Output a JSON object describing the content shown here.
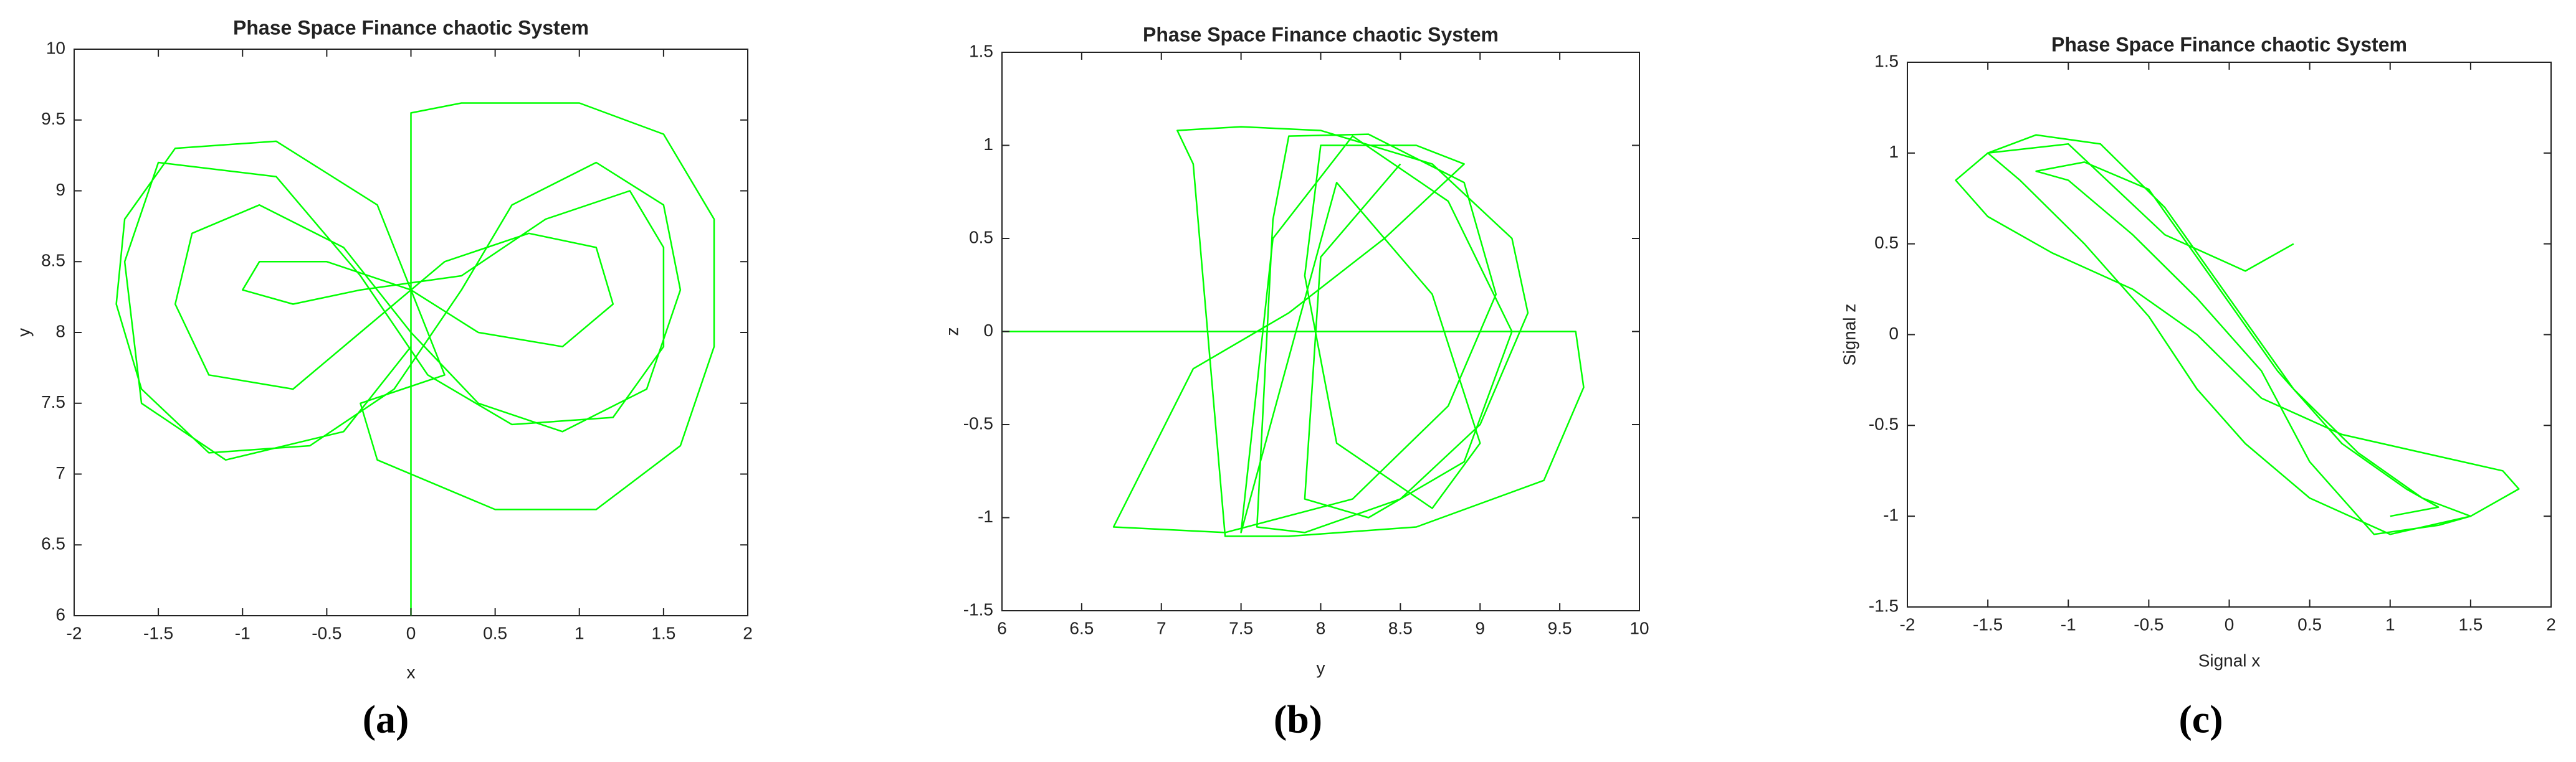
{
  "chart_data": [
    {
      "type": "line",
      "title": "Phase Space Finance chaotic System",
      "xlabel": "x",
      "ylabel": "y",
      "panel_label": "(a)",
      "color": "#00ff00",
      "xlim": [
        -2,
        2
      ],
      "ylim": [
        6,
        10
      ],
      "xticks": [
        -2,
        -1.5,
        -1,
        -0.5,
        0,
        0.5,
        1,
        1.5,
        2
      ],
      "yticks": [
        6,
        6.5,
        7,
        7.5,
        8,
        8.5,
        9,
        9.5,
        10
      ],
      "x": [
        0,
        0,
        0.3,
        1.0,
        1.5,
        1.8,
        1.8,
        1.6,
        1.1,
        0.5,
        -0.2,
        -0.3,
        0.2,
        -0.2,
        -0.8,
        -1.4,
        -1.7,
        -1.75,
        -1.6,
        -1.2,
        -0.6,
        -0.1,
        0.3,
        0.6,
        1.1,
        1.5,
        1.6,
        1.4,
        0.9,
        0.4,
        0,
        -0.4,
        -0.9,
        -1.3,
        -1.4,
        -1.2,
        -0.7,
        -0.3,
        0.2,
        0.7,
        1.1,
        1.2,
        0.9,
        0.4,
        0,
        -0.5,
        -0.9,
        -1.0,
        -0.7,
        -0.3,
        0.3,
        0.8,
        1.3,
        1.5,
        1.5,
        1.2,
        0.6,
        0.1,
        -0.3,
        -0.8,
        -1.5,
        -1.7,
        -1.6,
        -1.1,
        -0.4,
        0
      ],
      "values": [
        6,
        9.55,
        9.62,
        9.62,
        9.4,
        8.8,
        7.9,
        7.2,
        6.75,
        6.75,
        7.1,
        7.5,
        7.7,
        8.9,
        9.35,
        9.3,
        8.8,
        8.2,
        7.6,
        7.15,
        7.2,
        7.6,
        8.3,
        8.9,
        9.2,
        8.9,
        8.3,
        7.6,
        7.3,
        7.5,
        8.0,
        8.6,
        8.9,
        8.7,
        8.2,
        7.7,
        7.6,
        8.0,
        8.5,
        8.7,
        8.6,
        8.2,
        7.9,
        8.0,
        8.3,
        8.5,
        8.5,
        8.3,
        8.2,
        8.3,
        8.4,
        8.8,
        9.0,
        8.6,
        7.9,
        7.4,
        7.35,
        7.7,
        8.4,
        9.1,
        9.2,
        8.5,
        7.5,
        7.1,
        7.3,
        7.9
      ]
    },
    {
      "type": "line",
      "title": "Phase Space Finance chaotic System",
      "xlabel": "y",
      "ylabel": "z",
      "panel_label": "(b)",
      "color": "#00ff00",
      "xlim": [
        6,
        10
      ],
      "ylim": [
        -1.5,
        1.5
      ],
      "xticks": [
        6,
        6.5,
        7,
        7.5,
        8,
        8.5,
        9,
        9.5,
        10
      ],
      "yticks": [
        -1.5,
        -1,
        -0.5,
        0,
        0.5,
        1,
        1.5
      ],
      "x": [
        6,
        9.6,
        9.65,
        9.4,
        8.6,
        7.8,
        7.4,
        7.2,
        7.1,
        7.5,
        8.0,
        8.7,
        9.2,
        9.3,
        9.0,
        8.5,
        7.9,
        7.6,
        7.7,
        7.8,
        8.3,
        8.9,
        9.1,
        8.8,
        8.2,
        7.4,
        6.7,
        7.2,
        7.8,
        8.4,
        8.9,
        8.6,
        8.0,
        7.9,
        8.1,
        8.7,
        9.0,
        8.7,
        8.1,
        7.5,
        7.7,
        8.2,
        8.8,
        9.2,
        8.9,
        8.3,
        7.9,
        8.0,
        8.5
      ],
      "values": [
        0,
        0,
        -0.3,
        -0.8,
        -1.05,
        -1.1,
        -1.1,
        0.9,
        1.08,
        1.1,
        1.08,
        0.9,
        0.5,
        0.1,
        -0.5,
        -0.9,
        -1.08,
        -1.05,
        0.6,
        1.05,
        1.06,
        0.8,
        0.2,
        -0.4,
        -0.9,
        -1.08,
        -1.05,
        -0.2,
        0.1,
        0.5,
        0.9,
        1.0,
        1.0,
        0.3,
        -0.6,
        -0.95,
        -0.6,
        0.2,
        0.8,
        -1.08,
        0.5,
        1.05,
        0.7,
        0.0,
        -0.7,
        -1.0,
        -0.9,
        0.4,
        0.9
      ]
    },
    {
      "type": "line",
      "title": "Phase Space Finance chaotic System",
      "xlabel": "Signal x",
      "ylabel": "Signal z",
      "panel_label": "(c)",
      "color": "#00ff00",
      "xlim": [
        -2,
        2
      ],
      "ylim": [
        -1.5,
        1.5
      ],
      "xticks": [
        -2,
        -1.5,
        -1,
        -0.5,
        0,
        0.5,
        1,
        1.5,
        2
      ],
      "yticks": [
        -1.5,
        -1,
        -0.5,
        0,
        0.5,
        1,
        1.5
      ],
      "x": [
        0.4,
        0.1,
        -0.4,
        -1.0,
        -1.5,
        -1.7,
        -1.5,
        -1.1,
        -0.6,
        -0.2,
        0.2,
        0.7,
        1.2,
        1.7,
        1.8,
        1.5,
        1.0,
        0.5,
        0.1,
        -0.2,
        -0.5,
        -0.9,
        -1.3,
        -1.5,
        -1.2,
        -0.8,
        -0.4,
        0.0,
        0.4,
        0.8,
        1.2,
        1.5,
        1.3,
        0.9,
        0.5,
        0.2,
        -0.2,
        -0.6,
        -1.0,
        -1.2,
        -0.9,
        -0.5,
        -0.1,
        0.3,
        0.7,
        1.1,
        1.3,
        1.0
      ],
      "values": [
        0.5,
        0.35,
        0.55,
        1.05,
        1.0,
        0.85,
        0.65,
        0.45,
        0.25,
        0.0,
        -0.35,
        -0.55,
        -0.65,
        -0.75,
        -0.85,
        -1.0,
        -1.1,
        -0.9,
        -0.6,
        -0.3,
        0.1,
        0.5,
        0.85,
        1.0,
        1.1,
        1.05,
        0.7,
        0.2,
        -0.3,
        -0.65,
        -0.9,
        -1.0,
        -1.05,
        -1.1,
        -0.7,
        -0.2,
        0.2,
        0.55,
        0.85,
        0.9,
        0.95,
        0.8,
        0.3,
        -0.2,
        -0.6,
        -0.85,
        -0.95,
        -1.0
      ]
    }
  ]
}
